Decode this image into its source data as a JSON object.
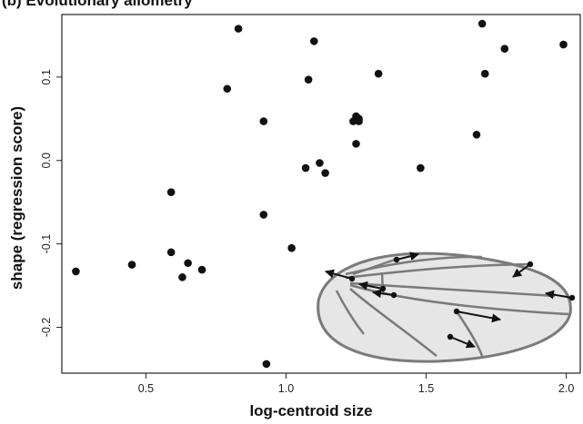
{
  "panel_title": "(b) Evolutionary allometry",
  "chart_data": {
    "type": "scatter",
    "title": "(b) Evolutionary allometry",
    "xlabel": "log-centroid size",
    "ylabel": "shape (regression score)",
    "xlim": [
      0.2,
      2.05
    ],
    "ylim": [
      -0.255,
      0.175
    ],
    "xticks": [
      0.5,
      1.0,
      1.5,
      2.0
    ],
    "xtick_labels": [
      "0.5",
      "1.0",
      "1.5",
      "2.0"
    ],
    "yticks": [
      -0.2,
      -0.1,
      0.0,
      0.1
    ],
    "ytick_labels": [
      "-0.2",
      "-0.1",
      "0.0",
      "0.1"
    ],
    "grid": false,
    "legend": "none",
    "point_color": "#111111",
    "x": [
      0.25,
      0.45,
      0.59,
      0.59,
      0.63,
      0.65,
      0.7,
      0.79,
      0.83,
      0.92,
      0.92,
      0.93,
      1.02,
      1.07,
      1.08,
      1.1,
      1.12,
      1.14,
      1.24,
      1.25,
      1.25,
      1.26,
      1.26,
      1.33,
      1.48,
      1.68,
      1.7,
      1.71,
      1.78,
      1.99
    ],
    "y": [
      -0.133,
      -0.125,
      -0.038,
      -0.11,
      -0.14,
      -0.123,
      -0.131,
      0.086,
      0.158,
      0.047,
      -0.065,
      -0.244,
      -0.105,
      -0.009,
      0.097,
      0.143,
      -0.003,
      -0.015,
      0.047,
      0.053,
      0.02,
      0.05,
      0.047,
      0.104,
      -0.009,
      0.031,
      0.164,
      0.104,
      0.134,
      0.139
    ]
  },
  "inset": {
    "name": "wing-landmark-diagram",
    "wing_fill": "#e6e6e6",
    "vein_color": "#7a7a7a"
  }
}
